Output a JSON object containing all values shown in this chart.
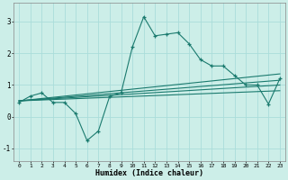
{
  "xlabel": "Humidex (Indice chaleur)",
  "background_color": "#cceee8",
  "grid_color": "#aaddda",
  "line_color": "#1a7a6e",
  "xlim": [
    -0.5,
    23.5
  ],
  "ylim": [
    -1.4,
    3.6
  ],
  "xticks": [
    0,
    1,
    2,
    3,
    4,
    5,
    6,
    7,
    8,
    9,
    10,
    11,
    12,
    13,
    14,
    15,
    16,
    17,
    18,
    19,
    20,
    21,
    22,
    23
  ],
  "yticks": [
    -1,
    0,
    1,
    2,
    3
  ],
  "main_line_x": [
    0,
    1,
    2,
    3,
    4,
    5,
    6,
    7,
    8,
    9,
    10,
    11,
    12,
    13,
    14,
    15,
    16,
    17,
    18,
    19,
    20,
    21,
    22,
    23
  ],
  "main_line_y": [
    0.45,
    0.65,
    0.75,
    0.45,
    0.45,
    0.1,
    -0.75,
    -0.45,
    0.65,
    0.75,
    2.2,
    3.15,
    2.55,
    2.6,
    2.65,
    2.3,
    1.8,
    1.6,
    1.6,
    1.3,
    1.0,
    1.0,
    0.4,
    1.2
  ],
  "straight_lines": [
    {
      "x": [
        0,
        23
      ],
      "y": [
        0.5,
        1.35
      ]
    },
    {
      "x": [
        0,
        23
      ],
      "y": [
        0.5,
        1.15
      ]
    },
    {
      "x": [
        0,
        23
      ],
      "y": [
        0.5,
        1.0
      ]
    },
    {
      "x": [
        0,
        23
      ],
      "y": [
        0.5,
        0.82
      ]
    }
  ]
}
